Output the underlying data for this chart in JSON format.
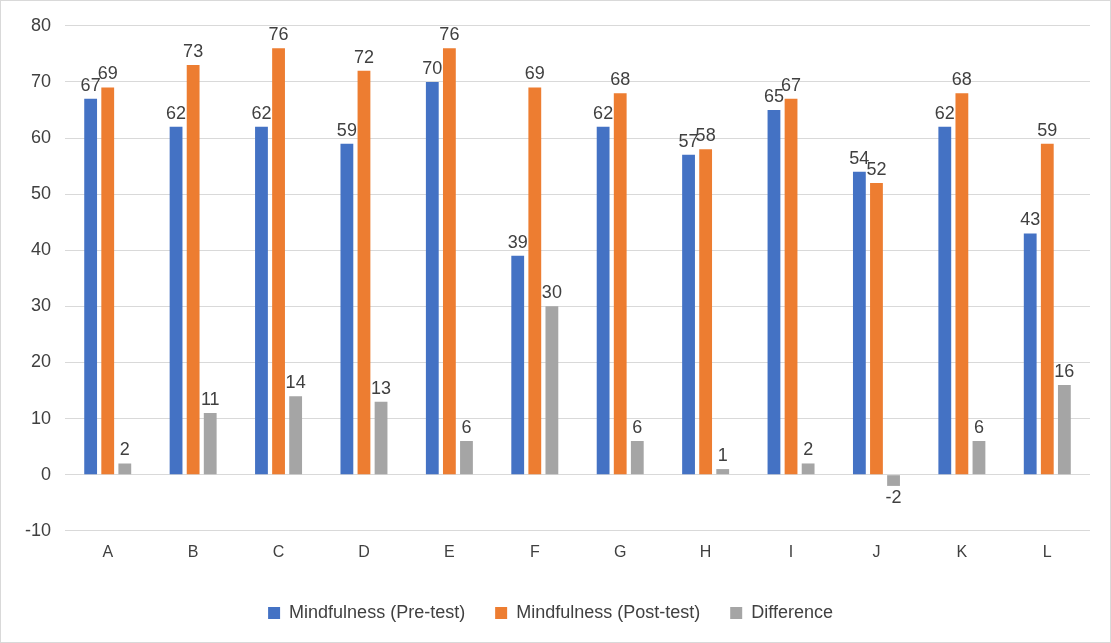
{
  "chart_data": {
    "type": "bar",
    "categories": [
      "A",
      "B",
      "C",
      "D",
      "E",
      "F",
      "G",
      "H",
      "I",
      "J",
      "K",
      "L"
    ],
    "series": [
      {
        "name": "Mindfulness (Pre-test)",
        "color": "#4472c4",
        "values": [
          67,
          62,
          62,
          59,
          70,
          39,
          62,
          57,
          65,
          54,
          62,
          43
        ]
      },
      {
        "name": "Mindfulness (Post-test)",
        "color": "#ed7d31",
        "values": [
          69,
          73,
          76,
          72,
          76,
          69,
          68,
          58,
          67,
          52,
          68,
          59
        ]
      },
      {
        "name": "Difference",
        "color": "#a5a5a5",
        "values": [
          2,
          11,
          14,
          13,
          6,
          30,
          6,
          1,
          2,
          -2,
          6,
          16
        ]
      }
    ],
    "ylim": [
      -10,
      80
    ],
    "yticks": [
      -10,
      0,
      10,
      20,
      30,
      40,
      50,
      60,
      70,
      80
    ],
    "grid": "y",
    "legend": "bottom",
    "data_labels": true
  }
}
